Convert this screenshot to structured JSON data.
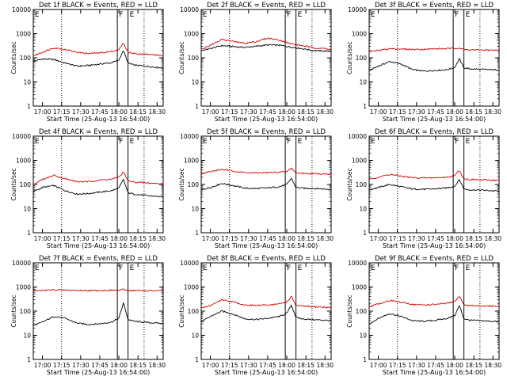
{
  "chart_data": [
    {
      "type": "line",
      "title": "Det 1f BLACK = Events, RED = LLD",
      "xlabel": "Start Time (25-Aug-13 16:54:00)",
      "ylabel": "Counts/sec",
      "yscale": "log",
      "ylim": [
        1,
        10000
      ],
      "xlim": [
        16.88,
        18.58
      ],
      "xticks": [
        "17:00",
        "17:15",
        "17:30",
        "17:45",
        "18:00",
        "18:15",
        "18:30"
      ],
      "markers": {
        "dotted": [
          17.25,
          18.33
        ],
        "solid": [
          17.98,
          18.12
        ],
        "labels": {
          "E_left": "E",
          "F": "F",
          "E_right": "E"
        }
      },
      "series": [
        {
          "color": "#000000",
          "x": [
            16.88,
            17.0,
            17.15,
            17.3,
            17.45,
            17.6,
            17.75,
            17.9,
            18.0,
            18.06,
            18.12,
            18.2,
            18.35,
            18.5,
            18.58
          ],
          "y": [
            70,
            90,
            85,
            60,
            45,
            48,
            55,
            62,
            80,
            200,
            60,
            50,
            45,
            40,
            38
          ]
        },
        {
          "color": "#d40000",
          "x": [
            16.88,
            17.0,
            17.15,
            17.3,
            17.45,
            17.6,
            17.75,
            17.9,
            18.0,
            18.06,
            18.12,
            18.2,
            18.35,
            18.5,
            18.58
          ],
          "y": [
            120,
            170,
            260,
            220,
            170,
            150,
            160,
            180,
            220,
            400,
            170,
            150,
            140,
            130,
            120
          ]
        }
      ]
    },
    {
      "type": "line",
      "title": "Det 2f BLACK = Events, RED = LLD",
      "xlabel": "Start Time (25-Aug-13 16:54:00)",
      "ylabel": "Counts/sec",
      "yscale": "log",
      "ylim": [
        1,
        10000
      ],
      "xlim": [
        16.88,
        18.58
      ],
      "xticks": [
        "17:00",
        "17:15",
        "17:30",
        "17:45",
        "18:00",
        "18:15",
        "18:30"
      ],
      "markers": {
        "dotted": [
          17.25,
          18.33
        ],
        "solid": [
          17.98,
          18.12
        ],
        "labels": {
          "E_left": "E",
          "F": "F",
          "E_right": "E"
        }
      },
      "series": [
        {
          "color": "#000000",
          "x": [
            16.88,
            17.0,
            17.15,
            17.3,
            17.45,
            17.6,
            17.75,
            17.9,
            18.05,
            18.2,
            18.35,
            18.5,
            18.58
          ],
          "y": [
            200,
            240,
            320,
            290,
            270,
            300,
            340,
            330,
            280,
            240,
            200,
            190,
            185
          ]
        },
        {
          "color": "#d40000",
          "x": [
            16.88,
            17.0,
            17.15,
            17.3,
            17.45,
            17.6,
            17.75,
            17.9,
            18.05,
            18.2,
            18.35,
            18.5,
            18.58
          ],
          "y": [
            230,
            330,
            580,
            470,
            400,
            470,
            650,
            550,
            380,
            320,
            260,
            240,
            230
          ]
        }
      ]
    },
    {
      "type": "line",
      "title": "Det 3f BLACK = Events, RED = LLD",
      "xlabel": "Start Time (25-Aug-13 16:54:00)",
      "ylabel": "Counts/sec",
      "yscale": "log",
      "ylim": [
        1,
        10000
      ],
      "xlim": [
        16.88,
        18.58
      ],
      "xticks": [
        "17:00",
        "17:15",
        "17:30",
        "17:45",
        "18:00",
        "18:15",
        "18:30"
      ],
      "markers": {
        "dotted": [
          17.25,
          18.33
        ],
        "solid": [
          17.98,
          18.12
        ],
        "labels": {
          "E_left": "E",
          "F": "F",
          "E_right": "E"
        }
      },
      "series": [
        {
          "color": "#000000",
          "x": [
            16.88,
            17.0,
            17.15,
            17.3,
            17.45,
            17.6,
            17.75,
            17.9,
            18.0,
            18.06,
            18.12,
            18.2,
            18.35,
            18.5,
            18.58
          ],
          "y": [
            30,
            45,
            70,
            55,
            32,
            28,
            30,
            32,
            40,
            90,
            38,
            35,
            33,
            32,
            31
          ]
        },
        {
          "color": "#d40000",
          "x": [
            16.88,
            17.0,
            17.15,
            17.3,
            17.45,
            17.6,
            17.75,
            17.9,
            18.0,
            18.06,
            18.12,
            18.2,
            18.35,
            18.5,
            18.58
          ],
          "y": [
            180,
            200,
            240,
            230,
            220,
            225,
            235,
            240,
            245,
            260,
            220,
            215,
            210,
            205,
            200
          ]
        }
      ]
    },
    {
      "type": "line",
      "title": "Det 4f BLACK = Events, RED = LLD",
      "xlabel": "Start Time (25-Aug-13 16:54:00)",
      "ylabel": "Counts/sec",
      "yscale": "log",
      "ylim": [
        1,
        10000
      ],
      "xlim": [
        16.88,
        18.58
      ],
      "xticks": [
        "17:00",
        "17:15",
        "17:30",
        "17:45",
        "18:00",
        "18:15",
        "18:30"
      ],
      "markers": {
        "dotted": [
          17.25,
          18.33
        ],
        "solid": [
          17.98,
          18.12
        ],
        "labels": {
          "E_left": "E",
          "F": "F",
          "E_right": "E"
        }
      },
      "series": [
        {
          "color": "#000000",
          "x": [
            16.88,
            17.0,
            17.15,
            17.3,
            17.45,
            17.6,
            17.75,
            17.9,
            18.0,
            18.06,
            18.12,
            18.2,
            18.35,
            18.5,
            18.58
          ],
          "y": [
            50,
            75,
            90,
            55,
            40,
            42,
            48,
            55,
            70,
            160,
            45,
            40,
            35,
            32,
            30
          ]
        },
        {
          "color": "#d40000",
          "x": [
            16.88,
            17.0,
            17.15,
            17.3,
            17.45,
            17.6,
            17.75,
            17.9,
            18.0,
            18.06,
            18.12,
            18.2,
            18.35,
            18.5,
            18.58
          ],
          "y": [
            100,
            160,
            240,
            170,
            130,
            130,
            150,
            165,
            200,
            330,
            140,
            125,
            115,
            110,
            105
          ]
        }
      ]
    },
    {
      "type": "line",
      "title": "Det 5f BLACK = Events, RED = LLD",
      "xlabel": "Start Time (25-Aug-13 16:54:00)",
      "ylabel": "Counts/sec",
      "yscale": "log",
      "ylim": [
        1,
        10000
      ],
      "xlim": [
        16.88,
        18.58
      ],
      "xticks": [
        "17:00",
        "17:15",
        "17:30",
        "17:45",
        "18:00",
        "18:15",
        "18:30"
      ],
      "markers": {
        "dotted": [
          17.25,
          18.33
        ],
        "solid": [
          17.98,
          18.12
        ],
        "labels": {
          "E_left": "E",
          "F": "F",
          "E_right": "E"
        }
      },
      "series": [
        {
          "color": "#000000",
          "x": [
            16.88,
            17.0,
            17.15,
            17.3,
            17.45,
            17.6,
            17.75,
            17.9,
            18.0,
            18.06,
            18.12,
            18.2,
            18.35,
            18.5,
            18.58
          ],
          "y": [
            60,
            75,
            110,
            90,
            70,
            68,
            72,
            80,
            100,
            180,
            75,
            70,
            68,
            65,
            62
          ]
        },
        {
          "color": "#d40000",
          "x": [
            16.88,
            17.0,
            17.15,
            17.3,
            17.45,
            17.6,
            17.75,
            17.9,
            18.0,
            18.06,
            18.12,
            18.2,
            18.35,
            18.5,
            18.58
          ],
          "y": [
            280,
            340,
            420,
            360,
            310,
            300,
            310,
            320,
            340,
            480,
            300,
            290,
            280,
            275,
            270
          ]
        }
      ]
    },
    {
      "type": "line",
      "title": "Det 6f BLACK = Events, RED = LLD",
      "xlabel": "Start Time (25-Aug-13 16:54:00)",
      "ylabel": "Counts/sec",
      "yscale": "log",
      "ylim": [
        1,
        10000
      ],
      "xlim": [
        16.88,
        18.58
      ],
      "xticks": [
        "17:00",
        "17:15",
        "17:30",
        "17:45",
        "18:00",
        "18:15",
        "18:30"
      ],
      "markers": {
        "dotted": [
          17.25,
          18.33
        ],
        "solid": [
          17.98,
          18.12
        ],
        "labels": {
          "E_left": "E",
          "F": "F",
          "E_right": "E"
        }
      },
      "series": [
        {
          "color": "#000000",
          "x": [
            16.88,
            17.0,
            17.15,
            17.3,
            17.45,
            17.6,
            17.75,
            17.9,
            18.0,
            18.06,
            18.12,
            18.2,
            18.35,
            18.5,
            18.58
          ],
          "y": [
            60,
            75,
            100,
            80,
            65,
            63,
            66,
            72,
            85,
            160,
            65,
            60,
            58,
            55,
            52
          ]
        },
        {
          "color": "#d40000",
          "x": [
            16.88,
            17.0,
            17.15,
            17.3,
            17.45,
            17.6,
            17.75,
            17.9,
            18.0,
            18.06,
            18.12,
            18.2,
            18.35,
            18.5,
            18.58
          ],
          "y": [
            160,
            200,
            260,
            220,
            190,
            185,
            190,
            200,
            230,
            380,
            170,
            160,
            155,
            150,
            148
          ]
        }
      ]
    },
    {
      "type": "line",
      "title": "Det 7f BLACK = Events, RED = LLD",
      "xlabel": "Start Time (25-Aug-13 16:54:00)",
      "ylabel": "Counts/sec",
      "yscale": "log",
      "ylim": [
        1,
        10000
      ],
      "xlim": [
        16.88,
        18.58
      ],
      "xticks": [
        "17:00",
        "17:15",
        "17:30",
        "17:45",
        "18:00",
        "18:15",
        "18:30"
      ],
      "markers": {
        "dotted": [
          17.25,
          18.33
        ],
        "solid": [
          17.98,
          18.12
        ],
        "labels": {
          "E_left": "E",
          "F": "F",
          "E_right": "E"
        }
      },
      "series": [
        {
          "color": "#000000",
          "x": [
            16.88,
            17.0,
            17.15,
            17.3,
            17.45,
            17.6,
            17.75,
            17.9,
            18.0,
            18.06,
            18.12,
            18.2,
            18.35,
            18.5,
            18.58
          ],
          "y": [
            25,
            35,
            60,
            50,
            32,
            28,
            30,
            35,
            50,
            220,
            45,
            38,
            34,
            32,
            30
          ]
        },
        {
          "color": "#d40000",
          "x": [
            16.88,
            17.0,
            17.15,
            17.3,
            17.45,
            17.6,
            17.75,
            17.9,
            18.0,
            18.06,
            18.12,
            18.2,
            18.35,
            18.5,
            18.58
          ],
          "y": [
            700,
            720,
            760,
            740,
            720,
            710,
            720,
            730,
            740,
            780,
            720,
            710,
            700,
            700,
            690
          ]
        }
      ]
    },
    {
      "type": "line",
      "title": "Det 8f BLACK = Events, RED = LLD",
      "xlabel": "Start Time (25-Aug-13 16:54:00)",
      "ylabel": "Counts/sec",
      "yscale": "log",
      "ylim": [
        1,
        10000
      ],
      "xlim": [
        16.88,
        18.58
      ],
      "xticks": [
        "17:00",
        "17:15",
        "17:30",
        "17:45",
        "18:00",
        "18:15",
        "18:30"
      ],
      "markers": {
        "dotted": [
          17.25,
          18.33
        ],
        "solid": [
          17.98,
          18.12
        ],
        "labels": {
          "E_left": "E",
          "F": "F",
          "E_right": "E"
        }
      },
      "series": [
        {
          "color": "#000000",
          "x": [
            16.88,
            17.0,
            17.15,
            17.3,
            17.45,
            17.6,
            17.75,
            17.9,
            18.0,
            18.06,
            18.12,
            18.2,
            18.35,
            18.5,
            18.58
          ],
          "y": [
            35,
            60,
            100,
            75,
            48,
            45,
            50,
            60,
            80,
            180,
            55,
            48,
            44,
            42,
            40
          ]
        },
        {
          "color": "#d40000",
          "x": [
            16.88,
            17.0,
            17.15,
            17.3,
            17.45,
            17.6,
            17.75,
            17.9,
            18.0,
            18.06,
            18.12,
            18.2,
            18.35,
            18.5,
            18.58
          ],
          "y": [
            130,
            170,
            300,
            240,
            180,
            170,
            180,
            200,
            240,
            400,
            170,
            160,
            150,
            145,
            140
          ]
        }
      ]
    },
    {
      "type": "line",
      "title": "Det 9f BLACK = Events, RED = LLD",
      "xlabel": "Start Time (25-Aug-13 16:54:00)",
      "ylabel": "Counts/sec",
      "yscale": "log",
      "ylim": [
        1,
        10000
      ],
      "xlim": [
        16.88,
        18.58
      ],
      "xticks": [
        "17:00",
        "17:15",
        "17:30",
        "17:45",
        "18:00",
        "18:15",
        "18:30"
      ],
      "markers": {
        "dotted": [
          17.25,
          18.33
        ],
        "solid": [
          17.98,
          18.12
        ],
        "labels": {
          "E_left": "E",
          "F": "F",
          "E_right": "E"
        }
      },
      "series": [
        {
          "color": "#000000",
          "x": [
            16.88,
            17.0,
            17.15,
            17.3,
            17.45,
            17.6,
            17.75,
            17.9,
            18.0,
            18.06,
            18.12,
            18.2,
            18.35,
            18.5,
            18.58
          ],
          "y": [
            30,
            50,
            80,
            60,
            40,
            38,
            42,
            50,
            65,
            170,
            48,
            42,
            40,
            38,
            36
          ]
        },
        {
          "color": "#d40000",
          "x": [
            16.88,
            17.0,
            17.15,
            17.3,
            17.45,
            17.6,
            17.75,
            17.9,
            18.0,
            18.06,
            18.12,
            18.2,
            18.35,
            18.5,
            18.58
          ],
          "y": [
            150,
            200,
            280,
            230,
            190,
            180,
            190,
            210,
            250,
            420,
            180,
            170,
            165,
            160,
            155
          ]
        }
      ]
    }
  ]
}
